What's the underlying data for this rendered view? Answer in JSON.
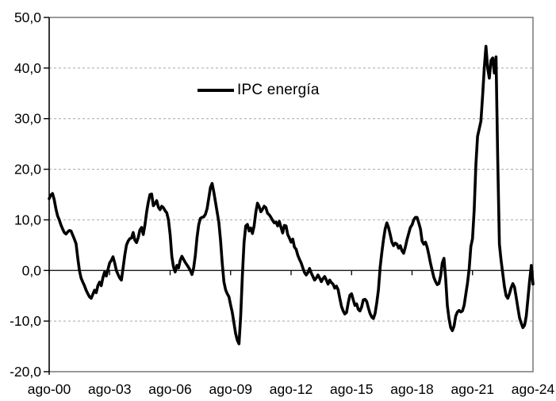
{
  "chart": {
    "legend_label": "IPC energía",
    "line_color": "#000000",
    "grid_color": "#a6a6a6",
    "border_color": "#808080",
    "axis_color": "#000000",
    "label_color": "#000000",
    "background": "#ffffff"
  },
  "chart_data": {
    "type": "line",
    "title": "",
    "series_name": "IPC energía",
    "frequency": "monthly",
    "x_start": "ago-00",
    "x_end": "ago-24",
    "x_tick_labels": [
      "ago-00",
      "ago-03",
      "ago-06",
      "ago-09",
      "ago-12",
      "ago-15",
      "ago-18",
      "ago-21",
      "ago-24"
    ],
    "x_tick_month_index": [
      0,
      36,
      72,
      108,
      144,
      180,
      216,
      252,
      288
    ],
    "y_tick_labels": [
      "50,0",
      "40,0",
      "30,0",
      "20,0",
      "10,0",
      "0,0",
      "-10,0",
      "-20,0"
    ],
    "y_tick_values": [
      50,
      40,
      30,
      20,
      10,
      0,
      -10,
      -20
    ],
    "ylim": [
      -20,
      50
    ],
    "grid": "dashed-horizontal",
    "legend_position": "top-center",
    "values": [
      14.2,
      14.9,
      15.2,
      14.0,
      12.2,
      10.8,
      10.0,
      9.0,
      8.2,
      7.5,
      7.2,
      7.6,
      7.9,
      7.8,
      7.0,
      6.2,
      5.3,
      2.5,
      0.0,
      -1.5,
      -2.3,
      -3.0,
      -3.9,
      -4.6,
      -5.2,
      -5.5,
      -4.7,
      -3.9,
      -4.4,
      -3.0,
      -2.3,
      -3.0,
      -1.4,
      -0.3,
      -1.1,
      0.2,
      1.5,
      2.0,
      2.7,
      1.5,
      0.0,
      -0.8,
      -1.5,
      -1.9,
      0.5,
      3.0,
      5.0,
      5.8,
      6.3,
      6.4,
      7.5,
      6.0,
      5.5,
      6.5,
      8.0,
      8.5,
      7.1,
      9.0,
      11.5,
      13.5,
      15.0,
      15.1,
      12.8,
      13.2,
      13.8,
      12.5,
      12.0,
      12.7,
      12.4,
      11.8,
      11.4,
      10.0,
      7.1,
      2.8,
      0.7,
      -0.3,
      1.0,
      0.5,
      2.0,
      2.8,
      2.2,
      1.6,
      1.1,
      0.6,
      0.0,
      -0.8,
      0.5,
      3.0,
      6.5,
      9.0,
      10.3,
      10.5,
      10.6,
      11.1,
      12.2,
      14.3,
      16.4,
      17.2,
      15.5,
      13.5,
      11.5,
      9.5,
      6.0,
      1.5,
      -2.2,
      -3.8,
      -4.6,
      -5.2,
      -6.8,
      -8.3,
      -10.4,
      -12.5,
      -13.8,
      -14.5,
      -9.0,
      -1.0,
      5.5,
      8.8,
      9.1,
      7.8,
      8.4,
      7.3,
      8.8,
      11.5,
      13.3,
      12.6,
      11.6,
      12.1,
      12.7,
      12.4,
      11.3,
      11.0,
      10.5,
      9.9,
      9.4,
      9.6,
      8.8,
      9.7,
      8.5,
      7.4,
      8.9,
      8.8,
      7.1,
      6.4,
      5.6,
      6.2,
      4.6,
      4.2,
      3.0,
      2.2,
      1.5,
      0.5,
      -0.4,
      -0.9,
      -0.4,
      0.4,
      -0.5,
      -1.2,
      -1.9,
      -1.5,
      -0.9,
      -1.5,
      -2.2,
      -1.6,
      -1.2,
      -1.9,
      -2.7,
      -1.9,
      -2.4,
      -2.7,
      -3.5,
      -3.1,
      -3.8,
      -5.5,
      -7.1,
      -8.0,
      -8.6,
      -8.3,
      -6.4,
      -4.9,
      -4.6,
      -5.8,
      -6.9,
      -6.6,
      -7.7,
      -8.0,
      -7.2,
      -5.8,
      -5.7,
      -6.1,
      -7.4,
      -8.5,
      -9.2,
      -9.5,
      -8.5,
      -6.4,
      -3.8,
      0.6,
      3.5,
      6.1,
      8.2,
      9.4,
      8.5,
      7.1,
      5.6,
      4.9,
      5.4,
      5.2,
      4.4,
      4.9,
      3.9,
      3.4,
      4.6,
      6.1,
      7.3,
      8.5,
      9.0,
      10.0,
      10.5,
      10.5,
      9.4,
      8.2,
      5.8,
      5.2,
      5.6,
      4.6,
      3.1,
      1.4,
      0.0,
      -1.4,
      -2.2,
      -2.8,
      -2.6,
      -1.1,
      1.5,
      2.4,
      -1.5,
      -6.9,
      -9.5,
      -11.3,
      -11.9,
      -11.0,
      -9.0,
      -8.2,
      -7.9,
      -8.2,
      -8.0,
      -6.9,
      -4.7,
      -2.5,
      0.3,
      4.7,
      6.3,
      12.0,
      20.9,
      26.5,
      28.0,
      29.5,
      34.5,
      40.0,
      44.3,
      40.0,
      38.0,
      41.5,
      42.0,
      39.0,
      42.2,
      22.0,
      5.2,
      2.0,
      -0.6,
      -3.2,
      -5.0,
      -5.5,
      -4.6,
      -3.4,
      -2.6,
      -3.3,
      -5.3,
      -7.4,
      -9.4,
      -10.4,
      -11.3,
      -10.8,
      -9.0,
      -5.5,
      -2.0,
      1.0,
      -2.7
    ]
  }
}
